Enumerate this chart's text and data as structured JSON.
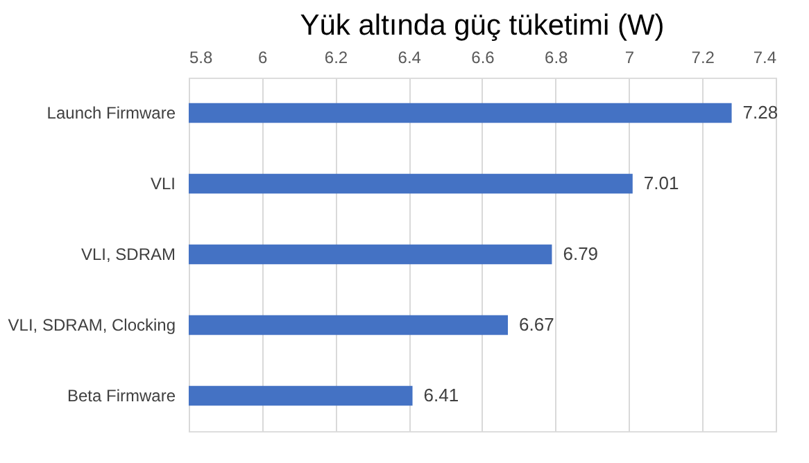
{
  "chart_data": {
    "type": "bar",
    "orientation": "horizontal",
    "title": "Yük altında güç tüketimi (W)",
    "categories": [
      "Launch Firmware",
      "VLI",
      "VLI, SDRAM",
      "VLI, SDRAM, Clocking",
      "Beta Firmware"
    ],
    "values": [
      7.28,
      7.01,
      6.79,
      6.67,
      6.41
    ],
    "color": "#4472c4",
    "xlim": [
      5.8,
      7.4
    ],
    "xticks": [
      5.8,
      6,
      6.2,
      6.4,
      6.6,
      6.8,
      7,
      7.2,
      7.4
    ],
    "grid": "x",
    "data_labels": true
  }
}
